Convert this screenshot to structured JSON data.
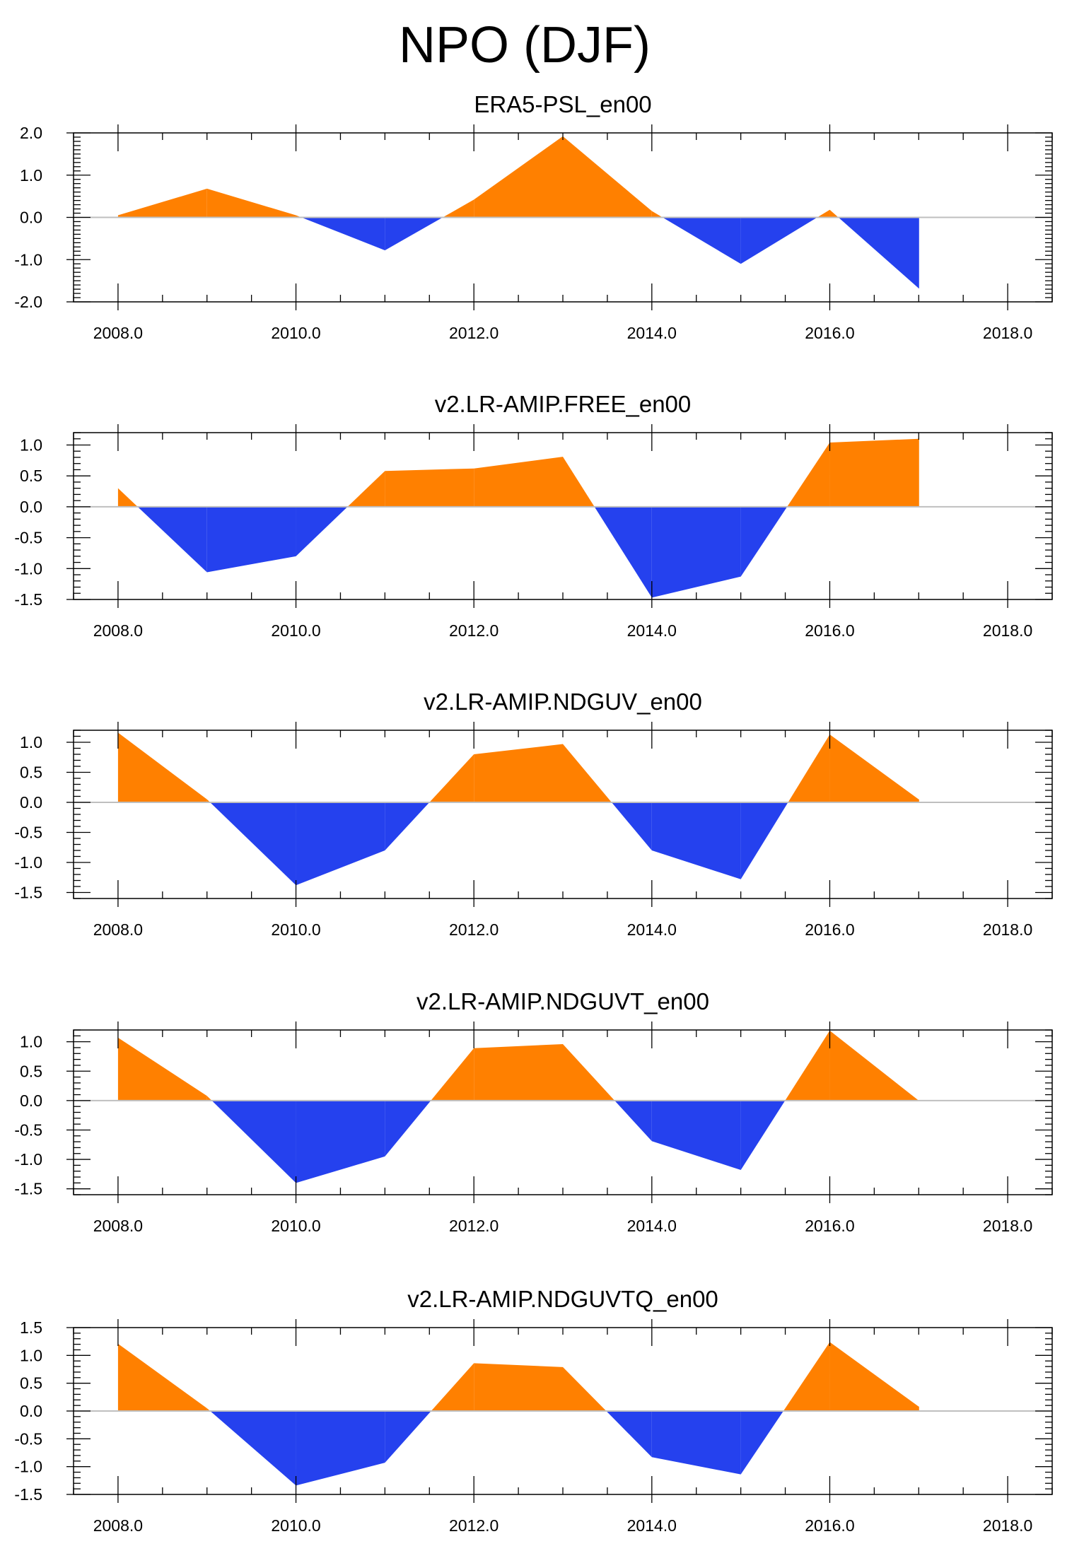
{
  "figure": {
    "title": "NPO (DJF)"
  },
  "colors": {
    "positive": "#ff8000",
    "negative": "#2541ee",
    "frame": "#000000",
    "zero_line": "#bfbfbf"
  },
  "chart_data": [
    {
      "type": "area",
      "title": "ERA5-PSL_en00",
      "x": [
        2008,
        2009,
        2010,
        2011,
        2012,
        2013,
        2014,
        2015,
        2016,
        2017
      ],
      "values": [
        0.05,
        0.68,
        0.05,
        -0.78,
        0.42,
        1.92,
        0.15,
        -1.1,
        0.18,
        -1.68
      ],
      "xlim": [
        2007.5,
        2018.5
      ],
      "ylim": [
        -2.0,
        2.0
      ],
      "xticks": [
        2008,
        2010,
        2012,
        2014,
        2016,
        2018
      ],
      "xtick_labels": [
        "2008.0",
        "2010.0",
        "2012.0",
        "2014.0",
        "2016.0",
        "2018.0"
      ],
      "yticks": [
        2.0,
        1.0,
        0.0,
        -1.0,
        -2.0
      ],
      "ytick_labels": [
        "2.0",
        "1.0",
        "0.0",
        "-1.0",
        "-2.0"
      ]
    },
    {
      "type": "area",
      "title": "v2.LR-AMIP.FREE_en00",
      "x": [
        2008,
        2009,
        2010,
        2011,
        2012,
        2013,
        2014,
        2015,
        2016,
        2017
      ],
      "values": [
        0.3,
        -1.06,
        -0.8,
        0.58,
        0.62,
        0.81,
        -1.47,
        -1.13,
        1.04,
        1.1
      ],
      "xlim": [
        2007.5,
        2018.5
      ],
      "ylim": [
        -1.5,
        1.2
      ],
      "xticks": [
        2008,
        2010,
        2012,
        2014,
        2016,
        2018
      ],
      "xtick_labels": [
        "2008.0",
        "2010.0",
        "2012.0",
        "2014.0",
        "2016.0",
        "2018.0"
      ],
      "yticks": [
        1.0,
        0.5,
        0.0,
        -0.5,
        -1.0,
        -1.5
      ],
      "ytick_labels": [
        "1.0",
        "0.5",
        "0.0",
        "-0.5",
        "-1.0",
        "-1.5"
      ]
    },
    {
      "type": "area",
      "title": "v2.LR-AMIP.NDGUV_en00",
      "x": [
        2008,
        2009,
        2010,
        2011,
        2012,
        2013,
        2014,
        2015,
        2016,
        2017
      ],
      "values": [
        1.16,
        0.05,
        -1.38,
        -0.8,
        0.8,
        0.97,
        -0.8,
        -1.28,
        1.13,
        0.05
      ],
      "xlim": [
        2007.5,
        2018.5
      ],
      "ylim": [
        -1.6,
        1.2
      ],
      "xticks": [
        2008,
        2010,
        2012,
        2014,
        2016,
        2018
      ],
      "xtick_labels": [
        "2008.0",
        "2010.0",
        "2012.0",
        "2014.0",
        "2016.0",
        "2018.0"
      ],
      "yticks": [
        1.0,
        0.5,
        0.0,
        -0.5,
        -1.0,
        -1.5
      ],
      "ytick_labels": [
        "1.0",
        "0.5",
        "0.0",
        "-0.5",
        "-1.0",
        "-1.5"
      ]
    },
    {
      "type": "area",
      "title": "v2.LR-AMIP.NDGUVT_en00",
      "x": [
        2008,
        2009,
        2010,
        2011,
        2012,
        2013,
        2014,
        2015,
        2016,
        2017
      ],
      "values": [
        1.07,
        0.08,
        -1.4,
        -0.95,
        0.89,
        0.96,
        -0.69,
        -1.18,
        1.19,
        0.0
      ],
      "xlim": [
        2007.5,
        2018.5
      ],
      "ylim": [
        -1.6,
        1.2
      ],
      "xticks": [
        2008,
        2010,
        2012,
        2014,
        2016,
        2018
      ],
      "xtick_labels": [
        "2008.0",
        "2010.0",
        "2012.0",
        "2014.0",
        "2016.0",
        "2018.0"
      ],
      "yticks": [
        1.0,
        0.5,
        0.0,
        -0.5,
        -1.0,
        -1.5
      ],
      "ytick_labels": [
        "1.0",
        "0.5",
        "0.0",
        "-0.5",
        "-1.0",
        "-1.5"
      ]
    },
    {
      "type": "area",
      "title": "v2.LR-AMIP.NDGUVTQ_en00",
      "x": [
        2008,
        2009,
        2010,
        2011,
        2012,
        2013,
        2014,
        2015,
        2016,
        2017
      ],
      "values": [
        1.21,
        0.05,
        -1.34,
        -0.93,
        0.86,
        0.79,
        -0.83,
        -1.14,
        1.24,
        0.08
      ],
      "xlim": [
        2007.5,
        2018.5
      ],
      "ylim": [
        -1.5,
        1.5
      ],
      "xticks": [
        2008,
        2010,
        2012,
        2014,
        2016,
        2018
      ],
      "xtick_labels": [
        "2008.0",
        "2010.0",
        "2012.0",
        "2014.0",
        "2016.0",
        "2018.0"
      ],
      "yticks": [
        1.5,
        1.0,
        0.5,
        0.0,
        -0.5,
        -1.0,
        -1.5
      ],
      "ytick_labels": [
        "1.5",
        "1.0",
        "0.5",
        "0.0",
        "-0.5",
        "-1.0",
        "-1.5"
      ]
    }
  ]
}
